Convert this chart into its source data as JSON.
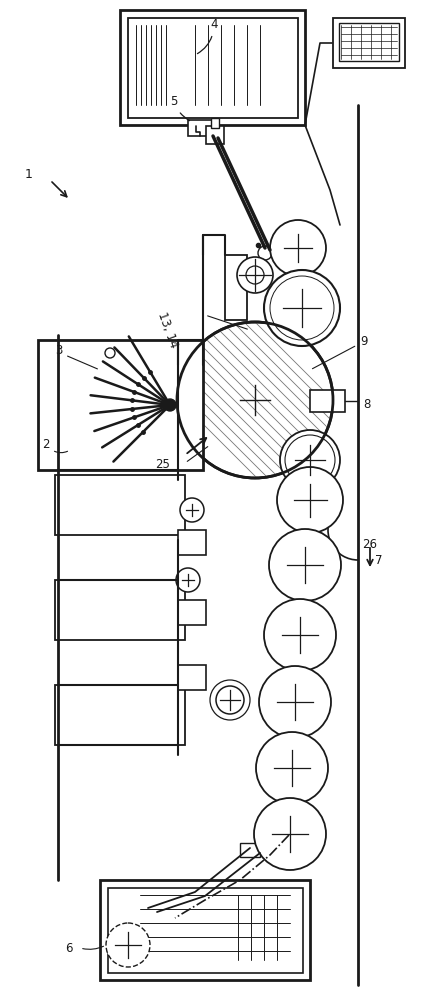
{
  "bg_color": "#ffffff",
  "line_color": "#1a1a1a",
  "fig_width": 4.22,
  "fig_height": 10.0
}
